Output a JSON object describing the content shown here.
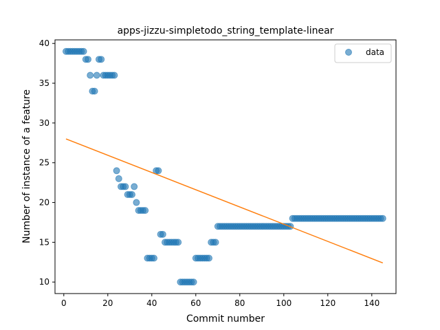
{
  "chart_data": {
    "type": "scatter",
    "title": "apps-jizzu-simpletodo_string_template-linear",
    "xlabel": "Commit number",
    "ylabel": "Number of instance of a feature",
    "xlim": [
      -4,
      151
    ],
    "ylim": [
      8.55,
      40.45
    ],
    "xticks": [
      0,
      20,
      40,
      60,
      80,
      100,
      120,
      140
    ],
    "yticks": [
      10,
      15,
      20,
      25,
      30,
      35,
      40
    ],
    "grid": false,
    "legend_position": "top-right",
    "colors": {
      "scatter": "#1f77b4",
      "fit": "#ff7f0e"
    },
    "series": [
      {
        "name": "data",
        "kind": "scatter",
        "points": [
          [
            1,
            39
          ],
          [
            2,
            39
          ],
          [
            3,
            39
          ],
          [
            4,
            39
          ],
          [
            5,
            39
          ],
          [
            6,
            39
          ],
          [
            7,
            39
          ],
          [
            8,
            39
          ],
          [
            9,
            39
          ],
          [
            10,
            38
          ],
          [
            11,
            38
          ],
          [
            12,
            36
          ],
          [
            13,
            34
          ],
          [
            14,
            34
          ],
          [
            15,
            36
          ],
          [
            16,
            38
          ],
          [
            17,
            38
          ],
          [
            18,
            36
          ],
          [
            19,
            36
          ],
          [
            20,
            36
          ],
          [
            21,
            36
          ],
          [
            22,
            36
          ],
          [
            23,
            36
          ],
          [
            24,
            24
          ],
          [
            25,
            23
          ],
          [
            26,
            22
          ],
          [
            27,
            22
          ],
          [
            28,
            22
          ],
          [
            29,
            21
          ],
          [
            30,
            21
          ],
          [
            31,
            21
          ],
          [
            32,
            22
          ],
          [
            33,
            20
          ],
          [
            34,
            19
          ],
          [
            35,
            19
          ],
          [
            36,
            19
          ],
          [
            37,
            19
          ],
          [
            38,
            13
          ],
          [
            39,
            13
          ],
          [
            40,
            13
          ],
          [
            41,
            13
          ],
          [
            42,
            24
          ],
          [
            43,
            24
          ],
          [
            44,
            16
          ],
          [
            45,
            16
          ],
          [
            46,
            15
          ],
          [
            47,
            15
          ],
          [
            48,
            15
          ],
          [
            49,
            15
          ],
          [
            50,
            15
          ],
          [
            51,
            15
          ],
          [
            52,
            15
          ],
          [
            53,
            10
          ],
          [
            54,
            10
          ],
          [
            55,
            10
          ],
          [
            56,
            10
          ],
          [
            57,
            10
          ],
          [
            58,
            10
          ],
          [
            59,
            10
          ],
          [
            60,
            13
          ],
          [
            61,
            13
          ],
          [
            62,
            13
          ],
          [
            63,
            13
          ],
          [
            64,
            13
          ],
          [
            65,
            13
          ],
          [
            66,
            13
          ],
          [
            67,
            15
          ],
          [
            68,
            15
          ],
          [
            69,
            15
          ],
          [
            70,
            17
          ],
          [
            71,
            17
          ],
          [
            72,
            17
          ],
          [
            73,
            17
          ],
          [
            74,
            17
          ],
          [
            75,
            17
          ],
          [
            76,
            17
          ],
          [
            77,
            17
          ],
          [
            78,
            17
          ],
          [
            79,
            17
          ],
          [
            80,
            17
          ],
          [
            81,
            17
          ],
          [
            82,
            17
          ],
          [
            83,
            17
          ],
          [
            84,
            17
          ],
          [
            85,
            17
          ],
          [
            86,
            17
          ],
          [
            87,
            17
          ],
          [
            88,
            17
          ],
          [
            89,
            17
          ],
          [
            90,
            17
          ],
          [
            91,
            17
          ],
          [
            92,
            17
          ],
          [
            93,
            17
          ],
          [
            94,
            17
          ],
          [
            95,
            17
          ],
          [
            96,
            17
          ],
          [
            97,
            17
          ],
          [
            98,
            17
          ],
          [
            99,
            17
          ],
          [
            100,
            17
          ],
          [
            101,
            17
          ],
          [
            102,
            17
          ],
          [
            103,
            17
          ],
          [
            104,
            18
          ],
          [
            105,
            18
          ],
          [
            106,
            18
          ],
          [
            107,
            18
          ],
          [
            108,
            18
          ],
          [
            109,
            18
          ],
          [
            110,
            18
          ],
          [
            111,
            18
          ],
          [
            112,
            18
          ],
          [
            113,
            18
          ],
          [
            114,
            18
          ],
          [
            115,
            18
          ],
          [
            116,
            18
          ],
          [
            117,
            18
          ],
          [
            118,
            18
          ],
          [
            119,
            18
          ],
          [
            120,
            18
          ],
          [
            121,
            18
          ],
          [
            122,
            18
          ],
          [
            123,
            18
          ],
          [
            124,
            18
          ],
          [
            125,
            18
          ],
          [
            126,
            18
          ],
          [
            127,
            18
          ],
          [
            128,
            18
          ],
          [
            129,
            18
          ],
          [
            130,
            18
          ],
          [
            131,
            18
          ],
          [
            132,
            18
          ],
          [
            133,
            18
          ],
          [
            134,
            18
          ],
          [
            135,
            18
          ],
          [
            136,
            18
          ],
          [
            137,
            18
          ],
          [
            138,
            18
          ],
          [
            139,
            18
          ],
          [
            140,
            18
          ],
          [
            141,
            18
          ],
          [
            142,
            18
          ],
          [
            143,
            18
          ],
          [
            144,
            18
          ],
          [
            145,
            18
          ]
        ]
      },
      {
        "name": "",
        "kind": "line",
        "points": [
          [
            1,
            28.0
          ],
          [
            145,
            12.4
          ]
        ]
      }
    ]
  }
}
